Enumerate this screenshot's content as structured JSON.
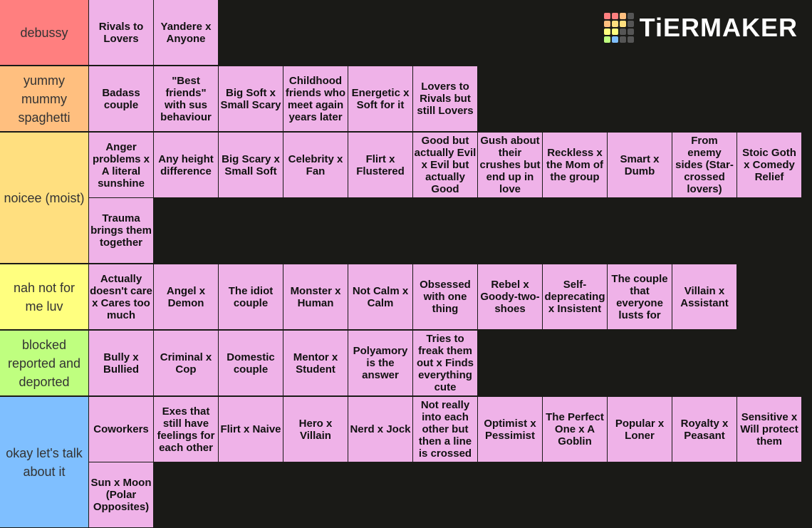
{
  "logo": "TiERMAKER",
  "tiers": [
    {
      "label": "debussy",
      "color": "#ff7f7f",
      "items": [
        "Rivals to Lovers",
        "Yandere x Anyone"
      ]
    },
    {
      "label": "yummy mummy spaghetti",
      "color": "#ffbf7f",
      "items": [
        "Badass couple",
        "\"Best friends\" with sus behaviour",
        "Big Soft x Small Scary",
        "Childhood friends who meet again years later",
        "Energetic x Soft for it",
        "Lovers to Rivals but still Lovers"
      ]
    },
    {
      "label": "noicee (moist)",
      "color": "#ffdf7f",
      "items": [
        "Anger problems x A literal sunshine",
        "Any height difference",
        "Big Scary x Small Soft",
        "Celebrity x Fan",
        "Flirt x Flustered",
        "Good but actually Evil x Evil but actually Good",
        "Gush about their crushes but end up in love",
        "Reckless x the Mom of the group",
        "Smart x Dumb",
        "From enemy sides (Star-crossed lovers)",
        "Stoic Goth x Comedy Relief",
        "Trauma brings them together"
      ]
    },
    {
      "label": "nah not for me luv",
      "color": "#ffff7f",
      "items": [
        "Actually doesn't care x Cares too much",
        "Angel x Demon",
        "The idiot couple",
        "Monster x Human",
        "Not Calm x Calm",
        "Obsessed with one thing",
        "Rebel x Goody-two-shoes",
        "Self-deprecating x Insistent",
        "The couple that everyone lusts for",
        "Villain x Assistant"
      ]
    },
    {
      "label": "blocked reported and deported",
      "color": "#bfff7f",
      "items": [
        "Bully x Bullied",
        "Criminal x Cop",
        "Domestic couple",
        "Mentor x Student",
        "Polyamory is the answer",
        "Tries to freak them out x Finds everything cute"
      ]
    },
    {
      "label": "okay let's talk about it",
      "color": "#7fbfff",
      "items": [
        "Coworkers",
        "Exes that still have feelings for each other",
        "Flirt x Naive",
        "Hero x Villain",
        "Nerd x Jock",
        "Not really into each other but then a line is crossed",
        "Optimist x Pessimist",
        "The Perfect One x A Goblin",
        "Popular x Loner",
        "Royalty x Peasant",
        "Sensitive x Will protect them",
        "Sun x Moon (Polar Opposites)"
      ]
    }
  ]
}
